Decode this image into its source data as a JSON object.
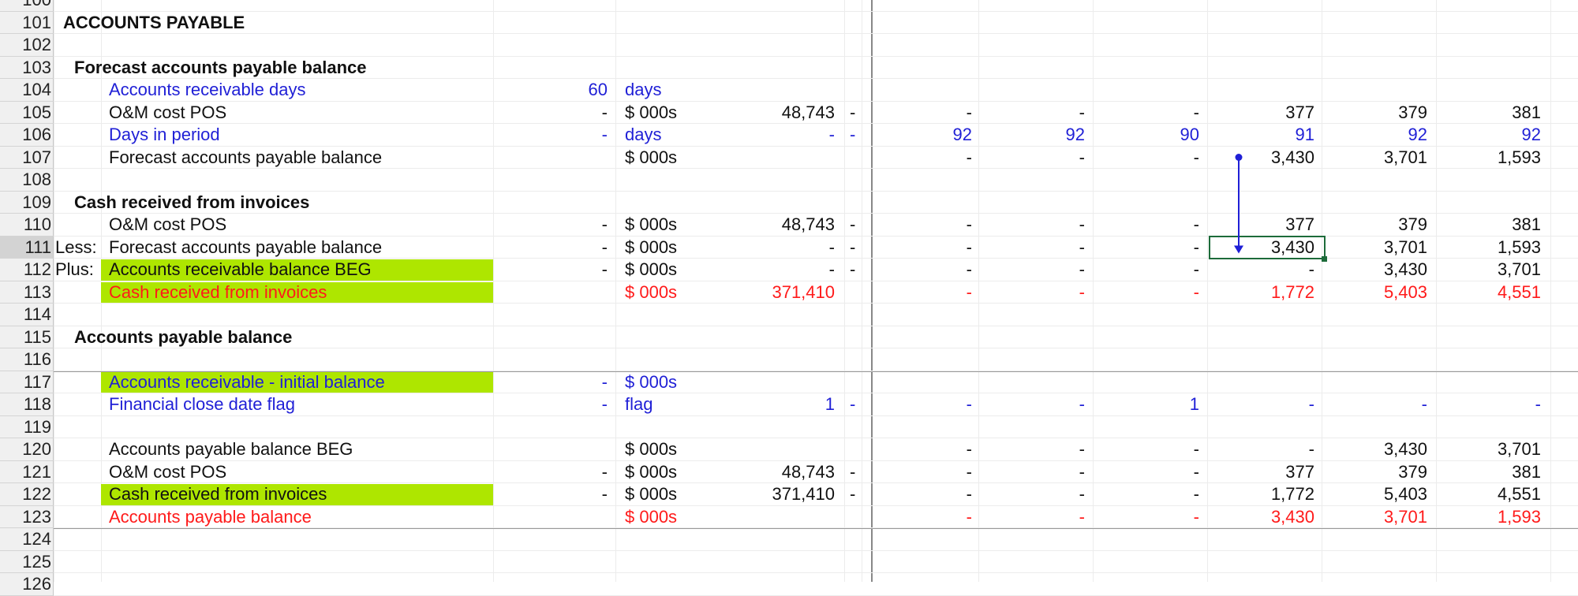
{
  "rows": [
    {
      "num": "100",
      "label": "",
      "items": []
    },
    {
      "num": "101",
      "label": "ACCOUNTS PAYABLE",
      "style": "title",
      "items": []
    },
    {
      "num": "102",
      "label": "",
      "items": []
    },
    {
      "num": "103",
      "label": "Forecast accounts payable balance",
      "style": "section",
      "items": []
    },
    {
      "num": "104",
      "label": "Accounts receivable days",
      "color": "blue",
      "cells": {
        "const": "60",
        "unit": "days",
        "constcolor": "blue",
        "unitcolor": "blue"
      }
    },
    {
      "num": "105",
      "label": "O&M cost POS",
      "color": "black",
      "cells": {
        "const": "-",
        "unit": "$ 000s",
        "total": "48,743",
        "flag": "-",
        "p": [
          "-",
          "-",
          "-",
          "377",
          "379",
          "381"
        ]
      }
    },
    {
      "num": "106",
      "label": "Days in period",
      "color": "blue",
      "cells": {
        "const": "-",
        "unit": "days",
        "total": "-",
        "flag": "-",
        "p": [
          "92",
          "92",
          "90",
          "91",
          "92",
          "92"
        ],
        "allcolor": "blue"
      }
    },
    {
      "num": "107",
      "label": "Forecast accounts payable balance",
      "color": "black",
      "cells": {
        "unit": "$ 000s",
        "p": [
          "-",
          "-",
          "-",
          "3,430",
          "3,701",
          "1,593"
        ]
      }
    },
    {
      "num": "108",
      "label": "",
      "items": []
    },
    {
      "num": "109",
      "label": "Cash received from invoices",
      "style": "section",
      "items": []
    },
    {
      "num": "110",
      "label": "O&M cost POS",
      "color": "black",
      "cells": {
        "const": "-",
        "unit": "$ 000s",
        "total": "48,743",
        "flag": "-",
        "p": [
          "-",
          "-",
          "-",
          "377",
          "379",
          "381"
        ]
      }
    },
    {
      "num": "111",
      "prefix": "Less:",
      "label": "Forecast accounts payable balance",
      "color": "black",
      "cells": {
        "const": "-",
        "unit": "$ 000s",
        "total": "-",
        "flag": "-",
        "p": [
          "-",
          "-",
          "-",
          "3,430",
          "3,701",
          "1,593"
        ]
      }
    },
    {
      "num": "112",
      "prefix": "Plus:",
      "label": "Accounts receivable balance BEG",
      "color": "black",
      "fill": true,
      "cells": {
        "const": "-",
        "unit": "$ 000s",
        "total": "-",
        "flag": "-",
        "p": [
          "-",
          "-",
          "-",
          "-",
          "3,430",
          "3,701"
        ]
      }
    },
    {
      "num": "113",
      "label": "Cash received from invoices",
      "color": "red",
      "fill": true,
      "cells": {
        "unit": "$ 000s",
        "total": "371,410",
        "p": [
          "-",
          "-",
          "-",
          "1,772",
          "5,403",
          "4,551"
        ],
        "allcolor": "red"
      }
    },
    {
      "num": "114",
      "label": "",
      "items": []
    },
    {
      "num": "115",
      "label": "Accounts payable balance",
      "style": "section",
      "items": []
    },
    {
      "num": "116",
      "label": "",
      "items": []
    },
    {
      "num": "117",
      "label": "Accounts receivable - initial balance",
      "color": "blue",
      "fill": true,
      "cells": {
        "const": "-",
        "unit": "$ 000s",
        "allcolor": "blue"
      }
    },
    {
      "num": "118",
      "label": "Financial close date flag",
      "color": "blue",
      "cells": {
        "const": "-",
        "unit": "flag",
        "total": "1",
        "flag": "-",
        "p": [
          "-",
          "-",
          "1",
          "-",
          "-",
          "-"
        ],
        "allcolor": "blue"
      }
    },
    {
      "num": "119",
      "label": "",
      "items": []
    },
    {
      "num": "120",
      "label": "Accounts payable balance BEG",
      "color": "black",
      "cells": {
        "unit": "$ 000s",
        "p": [
          "-",
          "-",
          "-",
          "-",
          "3,430",
          "3,701"
        ]
      }
    },
    {
      "num": "121",
      "label": "O&M cost POS",
      "color": "black",
      "cells": {
        "const": "-",
        "unit": "$ 000s",
        "total": "48,743",
        "flag": "-",
        "p": [
          "-",
          "-",
          "-",
          "377",
          "379",
          "381"
        ]
      }
    },
    {
      "num": "122",
      "label": "Cash received from invoices",
      "color": "black",
      "fill": true,
      "cells": {
        "const": "-",
        "unit": "$ 000s",
        "total": "371,410",
        "flag": "-",
        "p": [
          "-",
          "-",
          "-",
          "1,772",
          "5,403",
          "4,551"
        ]
      }
    },
    {
      "num": "123",
      "label": "Accounts payable balance",
      "color": "red",
      "cells": {
        "unit": "$ 000s",
        "p": [
          "-",
          "-",
          "-",
          "3,430",
          "3,701",
          "1,593"
        ],
        "allcolor": "red"
      }
    },
    {
      "num": "124",
      "label": "",
      "items": []
    },
    {
      "num": "125",
      "label": "",
      "items": []
    },
    {
      "num": "126",
      "label": "",
      "items": []
    }
  ],
  "selected_cell": {
    "row": "111",
    "value": "3,430"
  },
  "colors": {
    "fill": "#aee600",
    "blue": "#1f1fd6",
    "red": "#ff1a1a",
    "selection": "#1d6b3a",
    "arrow": "#1f1fd6"
  }
}
